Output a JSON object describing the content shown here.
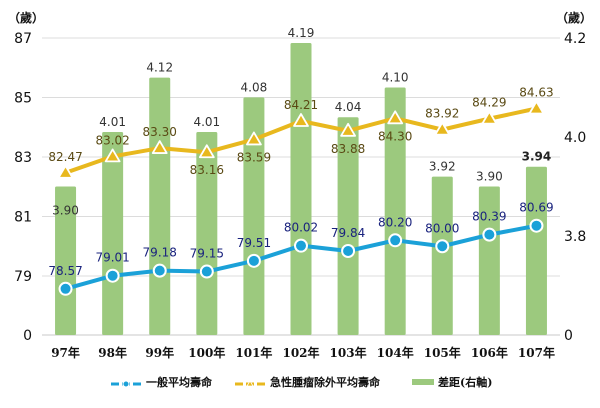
{
  "chart_data": {
    "type": "bar+line",
    "categories": [
      "97年",
      "98年",
      "99年",
      "100年",
      "101年",
      "102年",
      "103年",
      "104年",
      "105年",
      "106年",
      "107年"
    ],
    "series": [
      {
        "name": "一般平均壽命",
        "type": "line",
        "axis": "left",
        "color": "#1ba1d8",
        "values": [
          78.57,
          79.01,
          79.18,
          79.15,
          79.51,
          80.02,
          79.84,
          80.2,
          80.0,
          80.39,
          80.69
        ],
        "labels": [
          "78.57",
          "79.01",
          "79.18",
          "79.15",
          "79.51",
          "80.02",
          "79.84",
          "80.20",
          "80.00",
          "80.39",
          "80.69"
        ]
      },
      {
        "name": "急性腫瘤除外平均壽命",
        "type": "line",
        "axis": "left",
        "color": "#e8b81e",
        "values": [
          82.47,
          83.02,
          83.3,
          83.16,
          83.59,
          84.21,
          83.88,
          84.3,
          83.92,
          84.29,
          84.63
        ],
        "labels": [
          "82.47",
          "83.02",
          "83.30",
          "83.16",
          "83.59",
          "84.21",
          "83.88",
          "84.30",
          "83.92",
          "84.29",
          "84.63"
        ]
      },
      {
        "name": "差距(右軸)",
        "type": "bar",
        "axis": "right",
        "color": "#9cc97e",
        "values": [
          3.9,
          4.01,
          4.12,
          4.01,
          4.08,
          4.19,
          4.04,
          4.1,
          3.92,
          3.9,
          3.94
        ],
        "labels": [
          "3.90",
          "4.01",
          "4.12",
          "4.01",
          "4.08",
          "4.19",
          "4.04",
          "4.10",
          "3.92",
          "3.90",
          "3.94"
        ]
      }
    ],
    "left_axis": {
      "unit": "（歲）",
      "ticks": [
        0,
        79,
        81,
        83,
        85,
        87
      ],
      "tick_labels": [
        "0",
        "79",
        "81",
        "83",
        "85",
        "87"
      ],
      "broken_range": [
        77,
        87
      ]
    },
    "right_axis": {
      "unit": "（歲）",
      "ticks": [
        0,
        3.8,
        4.0,
        4.2
      ],
      "tick_labels": [
        "0",
        "3.8",
        "4.0",
        "4.2"
      ],
      "broken_range": [
        3.6,
        4.2
      ]
    },
    "grid": true,
    "legend_position": "bottom",
    "legend": [
      "一般平均壽命",
      "急性腫瘤除外平均壽命",
      "差距(右軸)"
    ]
  }
}
